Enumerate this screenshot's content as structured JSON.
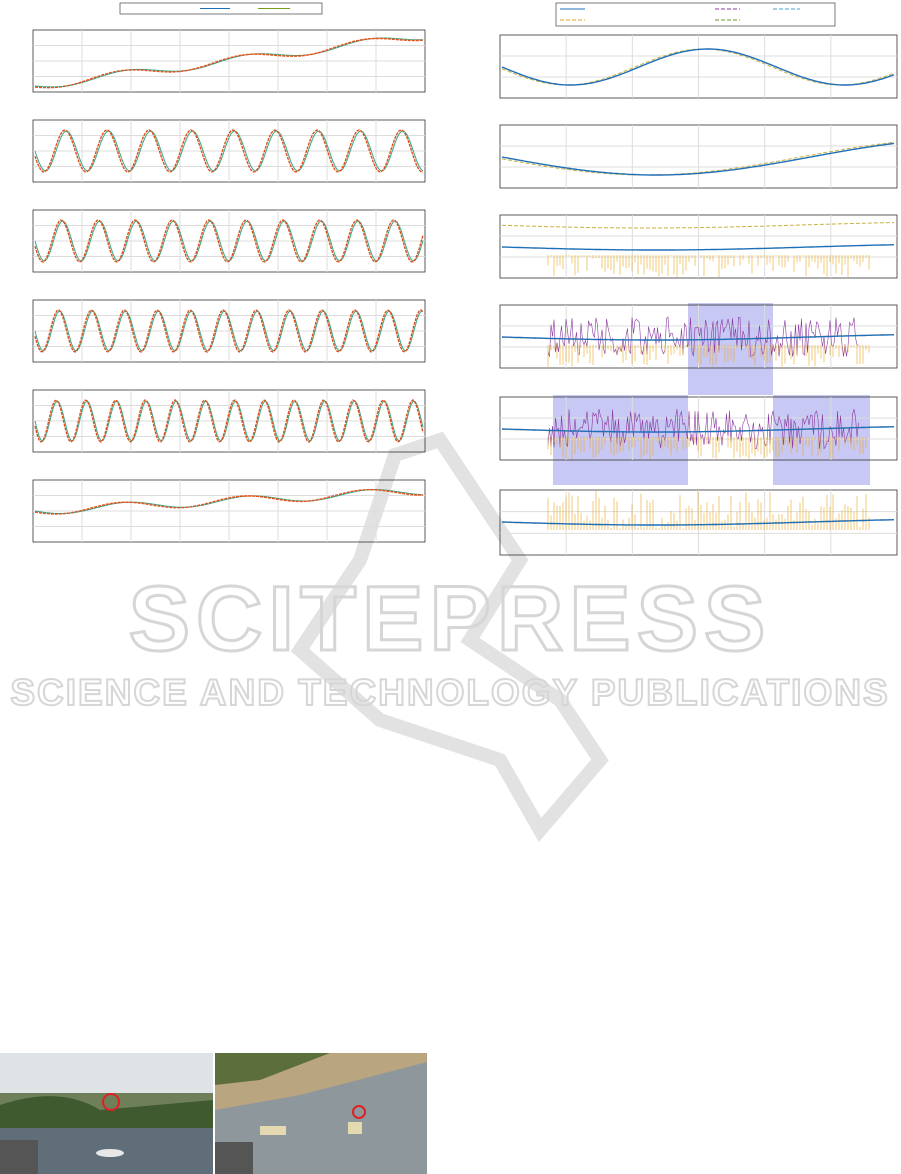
{
  "watermark": {
    "title": "SCITEPRESS",
    "subtitle": "SCIENCE AND TECHNOLOGY PUBLICATIONS"
  }
}
